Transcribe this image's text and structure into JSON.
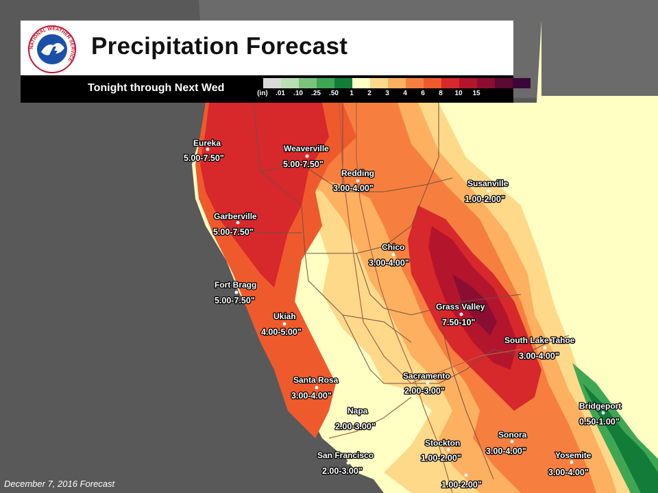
{
  "title": "Precipitation Forecast",
  "subtitle": "Tonight through Next Wed",
  "footer": "December 7, 2016 Forecast",
  "logo": {
    "text": "NATIONAL WEATHER SERVICE"
  },
  "legend": {
    "unit": "(in)",
    "ticks": [
      ".01",
      ".10",
      ".25",
      ".50",
      "1",
      "2",
      "3",
      "4",
      "6",
      "8",
      "10",
      "15"
    ],
    "colors": [
      "#d9d9d9",
      "#b8e0b4",
      "#7cc47a",
      "#3fa654",
      "#137c38",
      "#ffffc4",
      "#ffd98a",
      "#fdb060",
      "#f67f3f",
      "#ef5a2d",
      "#d7282b",
      "#b3152d",
      "#8a0e32",
      "#5a0a33",
      "#3b0638"
    ]
  },
  "colors": {
    "ocean": "#595959",
    "land_outside": "#ffffc4",
    "county_border": "#705040",
    "highway": "#b06040"
  },
  "locations": [
    {
      "name": "Eureka",
      "amount": "5.00-7.50\""
    },
    {
      "name": "Weaverville",
      "amount": "5.00-7.50\""
    },
    {
      "name": "Redding",
      "amount": "3.00-4.00\""
    },
    {
      "name": "Susanville",
      "amount": "1.00-2.00\""
    },
    {
      "name": "Garberville",
      "amount": "5.00-7.50\""
    },
    {
      "name": "Chico",
      "amount": "3.00-4.00\""
    },
    {
      "name": "Fort Bragg",
      "amount": "5.00-7.50\""
    },
    {
      "name": "Grass Valley",
      "amount": "7.50-10\""
    },
    {
      "name": "Ukiah",
      "amount": "4.00-5.00\""
    },
    {
      "name": "South Lake Tahoe",
      "amount": "3.00-4.00\""
    },
    {
      "name": "Santa Rosa",
      "amount": "3.00-4.00\""
    },
    {
      "name": "Sacramento",
      "amount": "2.00-3.00\""
    },
    {
      "name": "Bridgeport",
      "amount": "0.50-1.00\""
    },
    {
      "name": "Napa",
      "amount": "2.00-3.00\""
    },
    {
      "name": "Stockton",
      "amount": "1.00-2.00\""
    },
    {
      "name": "Sonora",
      "amount": "3.00-4.00\""
    },
    {
      "name": "San Francisco",
      "amount": "2.00-3.00\""
    },
    {
      "name": "Yosemite",
      "amount": "3.00-4.00\""
    },
    {
      "name": "",
      "amount": "1.00-2.00\""
    }
  ]
}
